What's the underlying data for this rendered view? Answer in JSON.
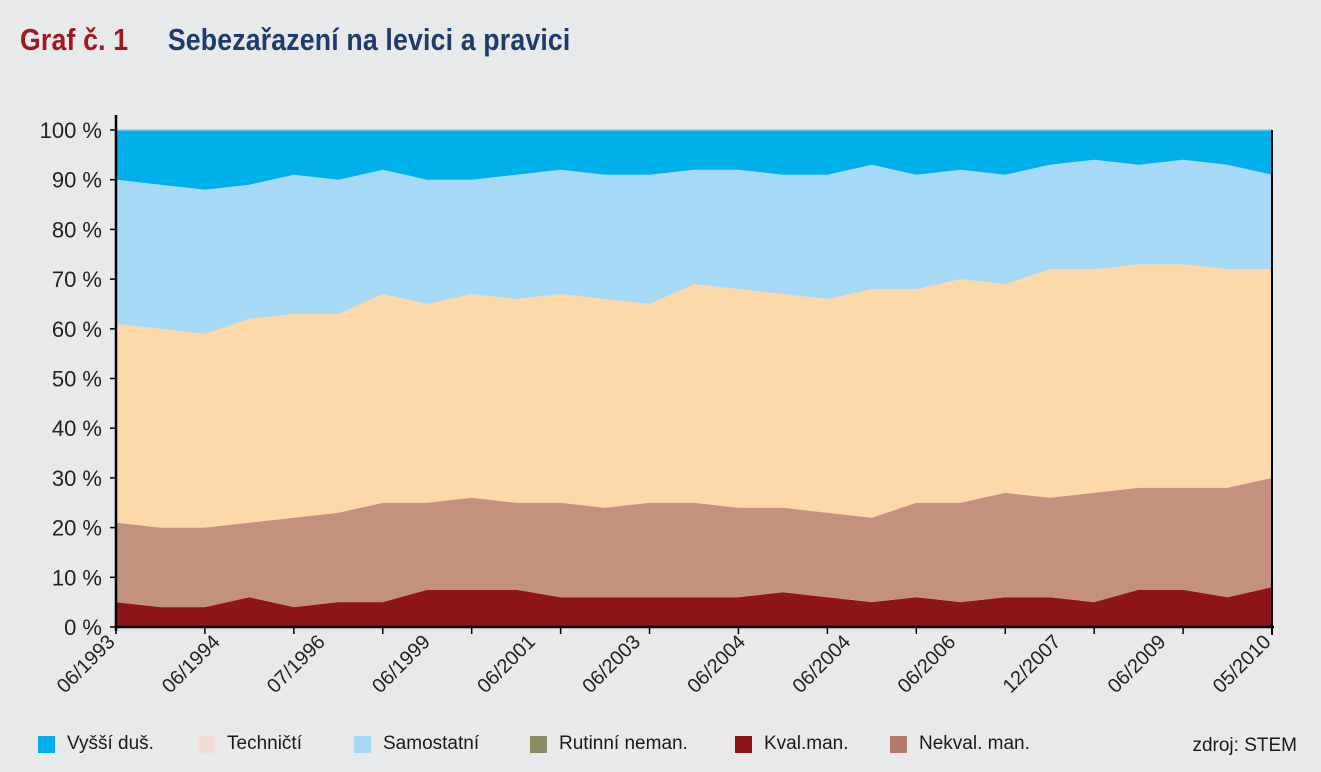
{
  "header": {
    "figure_number": "Graf č. 1",
    "title": "Sebezařazení na levici a pravici"
  },
  "source": "zdroj: STEM",
  "chart_data": {
    "type": "area",
    "stacked": true,
    "ylim": [
      0,
      100
    ],
    "y_ticks": [
      0,
      10,
      20,
      30,
      40,
      50,
      60,
      70,
      80,
      90,
      100
    ],
    "y_tick_labels": [
      "0 %",
      "10 %",
      "20 %",
      "30 %",
      "40 %",
      "50 %",
      "60 %",
      "70 %",
      "80 %",
      "90 %",
      "100 %"
    ],
    "x_tick_labels": [
      "06/1993",
      "06/1994",
      "07/1996",
      "06/1999",
      "06/2001",
      "06/2003",
      "06/2004",
      "06/2004",
      "06/2006",
      "12/2007",
      "06/2009",
      "05/2010"
    ],
    "series": [
      {
        "name": "Kval.man.",
        "color": "#8e1519",
        "values": [
          5,
          4,
          4,
          6,
          4,
          5,
          5,
          7.5,
          7.5,
          7.5,
          6,
          6,
          6,
          6,
          6,
          7,
          6,
          5,
          6,
          5,
          6,
          6,
          5,
          7.5,
          7.5,
          6,
          8
        ]
      },
      {
        "name": "Nekval. man.",
        "color": "#c4917e",
        "values": [
          16,
          16,
          16,
          15,
          18,
          18,
          20,
          17.5,
          18.5,
          17.5,
          19,
          18,
          19,
          19,
          18,
          17,
          17,
          17,
          19,
          20,
          21,
          20,
          22,
          20.5,
          20.5,
          22,
          22
        ]
      },
      {
        "name": "Techničtí",
        "color": "#fdd8a8",
        "values": [
          40,
          40,
          39,
          41,
          41,
          40,
          42,
          40,
          41,
          41,
          42,
          42,
          40,
          44,
          44,
          43,
          43,
          46,
          43,
          45,
          42,
          46,
          45,
          45,
          45,
          44,
          42
        ]
      },
      {
        "name": "Samostatní",
        "color": "#a5d9f5",
        "values": [
          29,
          29,
          29,
          27,
          28,
          27,
          25,
          25,
          23,
          25,
          25,
          25,
          26,
          23,
          24,
          24,
          25,
          25,
          23,
          22,
          22,
          21,
          22,
          20,
          21,
          21,
          19
        ]
      },
      {
        "name": "Vyšší duš.",
        "color": "#00b0eb",
        "values": [
          10,
          11,
          12,
          11,
          9,
          10,
          8,
          10,
          10,
          9,
          8,
          9,
          9,
          8,
          8,
          9,
          9,
          7,
          9,
          8,
          9,
          7,
          6,
          7,
          6,
          7,
          9
        ]
      }
    ],
    "legend": [
      {
        "name": "Vyšší duš.",
        "color": "#00b0eb"
      },
      {
        "name": "Techničtí",
        "color": "#f1ddd6"
      },
      {
        "name": "Samostatní",
        "color": "#a5d9f5"
      },
      {
        "name": "Rutinní neman.",
        "color": "#8c8c64"
      },
      {
        "name": "Kval.man.",
        "color": "#8e1519"
      },
      {
        "name": "Nekval. man.",
        "color": "#b37a67"
      }
    ]
  }
}
